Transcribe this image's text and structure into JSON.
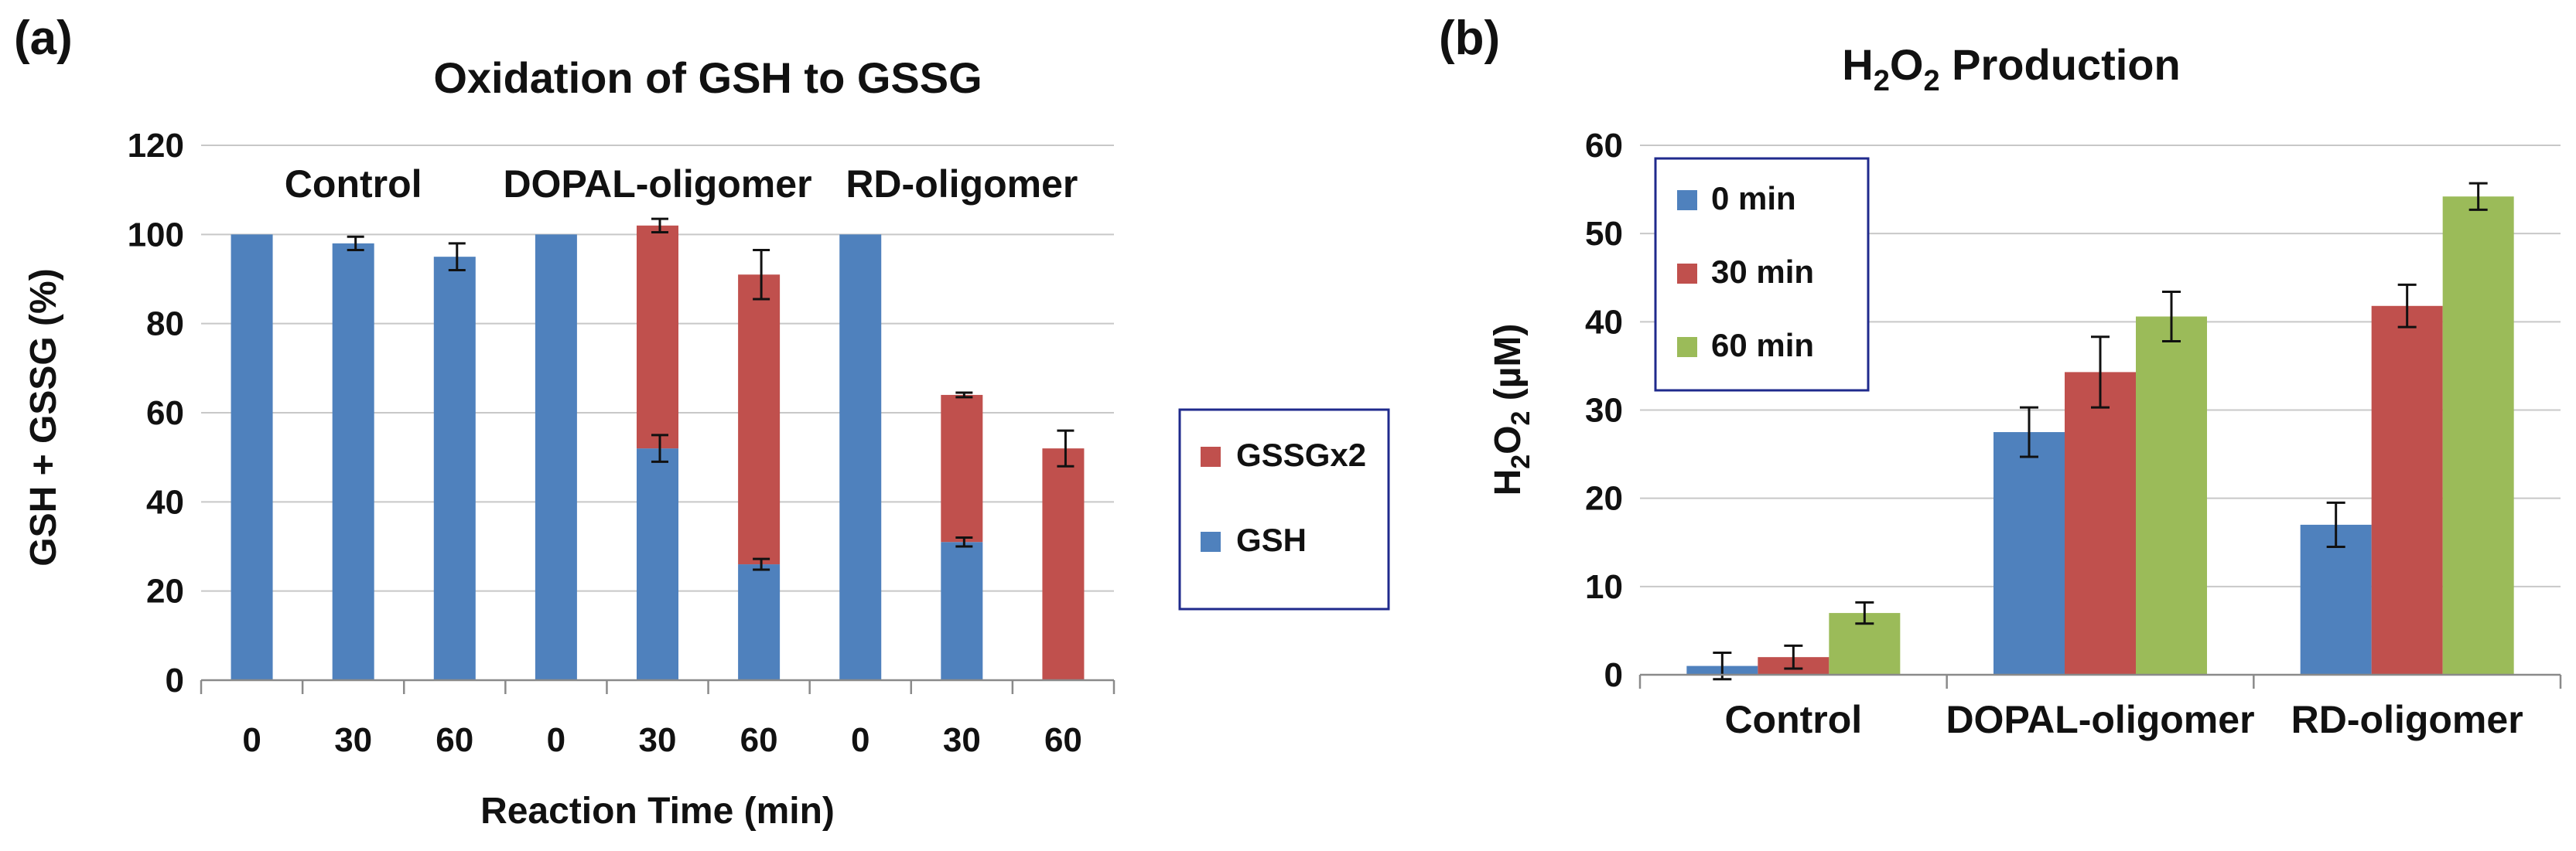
{
  "chart_data": [
    {
      "panel_label": "(a)",
      "type": "bar",
      "stacked": true,
      "title": "Oxidation of GSH to GSSG",
      "xlabel": "Reaction Time (min)",
      "ylabel": "GSH + GSSG (%)",
      "ylim": [
        0,
        120
      ],
      "yticks": [
        "0",
        "20",
        "40",
        "60",
        "80",
        "100",
        "120"
      ],
      "grid": true,
      "groups": [
        "Control",
        "DOPAL-oligomer",
        "RD-oligomer"
      ],
      "categories": [
        "0",
        "30",
        "60",
        "0",
        "30",
        "60",
        "0",
        "30",
        "60"
      ],
      "series": [
        {
          "name": "GSH",
          "color": "#4f81bd",
          "values": [
            100,
            98,
            95,
            100,
            52,
            26,
            100,
            31,
            0
          ],
          "errors": [
            0,
            1.5,
            3,
            0,
            3,
            1.2,
            0,
            1,
            0
          ]
        },
        {
          "name": "GSSGx2",
          "color": "#c0504d",
          "values": [
            0,
            0,
            0,
            0,
            50,
            65,
            0,
            33,
            52
          ],
          "errors": [
            0,
            0,
            0,
            0,
            1.5,
            5.5,
            0,
            0.5,
            4
          ]
        }
      ],
      "legend": {
        "placement": "right",
        "items": [
          "GSSGx2",
          "GSH"
        ]
      }
    },
    {
      "panel_label": "(b)",
      "type": "bar",
      "title": "H2O2 Production",
      "title_parts": {
        "a": "H",
        "sub1": "2",
        "b": "O",
        "sub2": "2",
        "c": " Production"
      },
      "ylabel": "H2O2 (µM)",
      "ylabel_parts": {
        "a": "H",
        "sub1": "2",
        "b": "O",
        "sub2": "2",
        "c": " (µM)"
      },
      "ylim": [
        0,
        60
      ],
      "yticks": [
        "0",
        "10",
        "20",
        "30",
        "40",
        "50",
        "60"
      ],
      "grid": true,
      "categories": [
        "Control",
        "DOPAL-oligomer",
        "RD-oligomer"
      ],
      "series": [
        {
          "name": "0 min",
          "color": "#4f81bd",
          "values": [
            1,
            27.5,
            17
          ],
          "errors": [
            1.5,
            2.8,
            2.5
          ]
        },
        {
          "name": "30 min",
          "color": "#c0504d",
          "values": [
            2,
            34.3,
            41.8
          ],
          "errors": [
            1.3,
            4,
            2.4
          ]
        },
        {
          "name": "60 min",
          "color": "#9bbb59",
          "values": [
            7,
            40.6,
            54.2
          ],
          "errors": [
            1.2,
            2.8,
            1.5
          ]
        }
      ],
      "legend": {
        "placement": "top-left"
      }
    }
  ]
}
